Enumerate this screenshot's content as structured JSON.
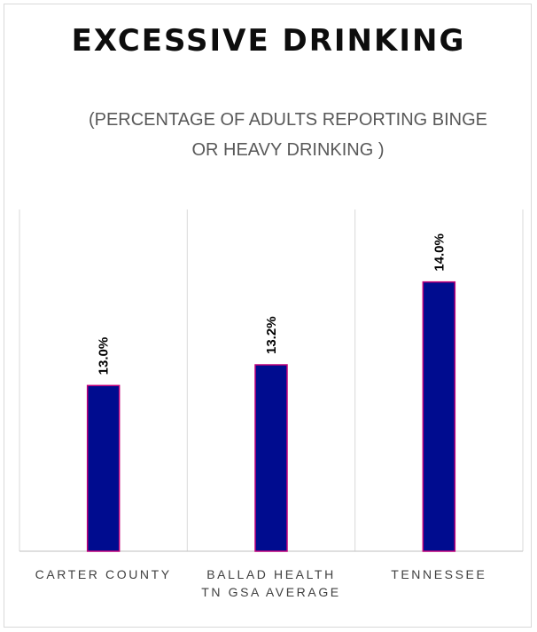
{
  "chart_data": {
    "type": "bar",
    "title": "EXCESSIVE DRINKING",
    "subtitle": "(PERCENTAGE OF ADULTS REPORTING BINGE OR HEAVY DRINKING )",
    "categories": [
      [
        "CARTER COUNTY"
      ],
      [
        "BALLAD HEALTH",
        "TN GSA AVERAGE"
      ],
      [
        "TENNESSEE"
      ]
    ],
    "values": [
      13.0,
      13.2,
      14.0
    ],
    "data_labels": [
      "13.0%",
      "13.2%",
      "14.0%"
    ],
    "ylim": [
      11.4,
      14.7
    ],
    "grid": "vertical separators",
    "legend": "none",
    "colors": {
      "bar_fill": "#000c8f",
      "bar_stroke": "#c0007a",
      "grid": "#d9d9d9",
      "axis": "#bfbfbf"
    }
  }
}
